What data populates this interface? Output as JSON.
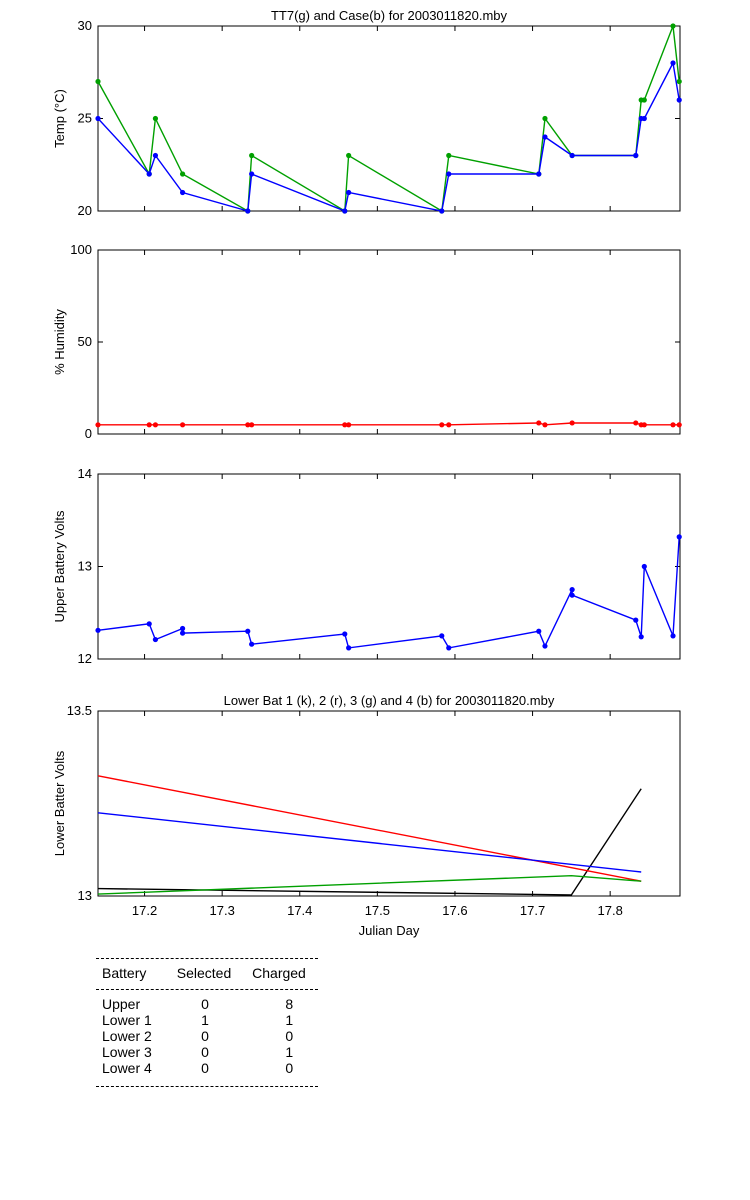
{
  "chart_data": [
    {
      "type": "line",
      "title": "TT7(g) and Case(b) for 2003011820.mby",
      "xlabel": "",
      "ylabel": "Temp  (°C)",
      "xlim": [
        17.14,
        17.89
      ],
      "ylim": [
        20,
        30
      ],
      "yticks": [
        "20",
        "25",
        "30"
      ],
      "series": [
        {
          "color": "#00a000",
          "x": [
            17.14,
            17.206,
            17.214,
            17.249,
            17.333,
            17.338,
            17.458,
            17.463,
            17.583,
            17.592,
            17.708,
            17.716,
            17.751,
            17.833,
            17.84,
            17.844,
            17.881,
            17.889
          ],
          "y": [
            27,
            22,
            25,
            22,
            20,
            23,
            20,
            23,
            20,
            23,
            22,
            25,
            23,
            23,
            26,
            26,
            30,
            27
          ]
        },
        {
          "color": "#0000ff",
          "x": [
            17.14,
            17.206,
            17.214,
            17.249,
            17.333,
            17.338,
            17.458,
            17.463,
            17.583,
            17.592,
            17.708,
            17.716,
            17.751,
            17.833,
            17.84,
            17.844,
            17.881,
            17.889
          ],
          "y": [
            25,
            22,
            23,
            21,
            20,
            22,
            20,
            21,
            20,
            22,
            22,
            24,
            23,
            23,
            25,
            25,
            28,
            26
          ]
        }
      ]
    },
    {
      "type": "line",
      "title": "",
      "xlabel": "",
      "ylabel": "% Humidity",
      "xlim": [
        17.14,
        17.89
      ],
      "ylim": [
        0,
        100
      ],
      "yticks": [
        "0",
        "50",
        "100"
      ],
      "series": [
        {
          "color": "#ff0000",
          "x": [
            17.14,
            17.206,
            17.214,
            17.249,
            17.333,
            17.338,
            17.458,
            17.463,
            17.583,
            17.592,
            17.708,
            17.716,
            17.751,
            17.833,
            17.84,
            17.844,
            17.881,
            17.889
          ],
          "y": [
            5,
            5,
            5,
            5,
            5,
            5,
            5,
            5,
            5,
            5,
            6,
            5,
            6,
            6,
            5,
            5,
            5,
            5
          ]
        }
      ]
    },
    {
      "type": "line",
      "title": "",
      "xlabel": "",
      "ylabel": "Upper Battery Volts",
      "xlim": [
        17.14,
        17.89
      ],
      "ylim": [
        12,
        14
      ],
      "yticks": [
        "12",
        "13",
        "14"
      ],
      "series": [
        {
          "color": "#0000ff",
          "x": [
            17.14,
            17.206,
            17.214,
            17.249,
            17.249,
            17.333,
            17.338,
            17.458,
            17.463,
            17.583,
            17.592,
            17.708,
            17.716,
            17.751,
            17.751,
            17.833,
            17.84,
            17.844,
            17.881,
            17.889
          ],
          "y": [
            12.31,
            12.38,
            12.21,
            12.33,
            12.28,
            12.3,
            12.16,
            12.27,
            12.12,
            12.25,
            12.12,
            12.3,
            12.14,
            12.75,
            12.69,
            12.42,
            12.24,
            13.0,
            12.25,
            13.32
          ]
        }
      ]
    },
    {
      "type": "line",
      "title": "Lower Bat 1 (k), 2 (r), 3 (g) and 4 (b) for 2003011820.mby",
      "xlabel": "Julian Day",
      "ylabel": "Lower Batter Volts",
      "xlim": [
        17.14,
        17.89
      ],
      "ylim": [
        13,
        13.5
      ],
      "yticks": [
        "13",
        "13.5"
      ],
      "xticks": [
        "17.2",
        "17.3",
        "17.4",
        "17.5",
        "17.6",
        "17.7",
        "17.8"
      ],
      "series": [
        {
          "color": "#000000",
          "x": [
            17.14,
            17.75,
            17.84
          ],
          "y": [
            13.02,
            13.003,
            13.29
          ]
        },
        {
          "color": "#ff0000",
          "x": [
            17.14,
            17.84
          ],
          "y": [
            13.325,
            13.04
          ]
        },
        {
          "color": "#00a000",
          "x": [
            17.14,
            17.75,
            17.84
          ],
          "y": [
            13.005,
            13.055,
            13.04
          ]
        },
        {
          "color": "#0000ff",
          "x": [
            17.14,
            17.84
          ],
          "y": [
            13.225,
            13.065
          ]
        }
      ]
    }
  ],
  "battery_table": {
    "headers": [
      "Battery",
      "Selected",
      "Charged"
    ],
    "rows": [
      [
        "Upper",
        "0",
        "8"
      ],
      [
        "Lower 1",
        "1",
        "1"
      ],
      [
        "Lower 2",
        "0",
        "0"
      ],
      [
        "Lower 3",
        "0",
        "1"
      ],
      [
        "Lower 4",
        "0",
        "0"
      ]
    ]
  }
}
